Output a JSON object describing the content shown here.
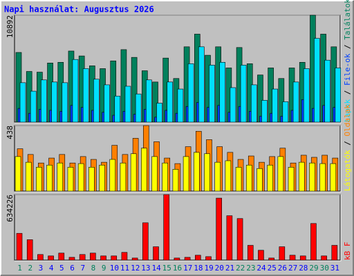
{
  "chart_data": [
    {
      "type": "bar",
      "title": "Napi használat: Augusztus 2026",
      "ylim": [
        0,
        10892
      ],
      "yticks": [
        10892
      ],
      "series": [
        {
          "name": "Találatok",
          "color": "#00805c",
          "values": [
            7098,
            5162,
            5090,
            6023,
            6094,
            7241,
            6740,
            5736,
            5449,
            6238,
            7385,
            6596,
            5234,
            4087,
            6525,
            4445,
            7672,
            8963,
            6812,
            7672,
            5521,
            7600,
            5951,
            4804,
            5521,
            4445,
            5521,
            6094,
            10892,
            8963,
            7672
          ]
        },
        {
          "name": "File-ok",
          "color": "#0040ff",
          "values": [
            1400,
            900,
            1300,
            1200,
            1100,
            1700,
            1500,
            1200,
            1000,
            700,
            1100,
            800,
            1300,
            500,
            1200,
            900,
            1600,
            2000,
            1500,
            1700,
            1000,
            1600,
            1100,
            600,
            900,
            600,
            1200,
            2300,
            1400,
            1700,
            1500
          ]
        },
        {
          "name": "Lapok",
          "color": "#00e0ff",
          "values": [
            4015,
            3155,
            4302,
            4087,
            4015,
            6381,
            5449,
            4374,
            3800,
            2653,
            3656,
            2868,
            4302,
            1936,
            4087,
            3370,
            5951,
            7672,
            5808,
            6094,
            3513,
            5808,
            3800,
            2222,
            3370,
            2079,
            4087,
            5449,
            8533,
            6310,
            5521
          ]
        }
      ]
    },
    {
      "type": "bar",
      "ylim": [
        0,
        438
      ],
      "yticks": [
        438
      ],
      "series": [
        {
          "name": "Oldalak",
          "color": "#ff8000",
          "values": [
            283,
            245,
            188,
            221,
            245,
            188,
            231,
            212,
            193,
            306,
            245,
            353,
            438,
            330,
            221,
            184,
            297,
            400,
            344,
            297,
            259,
            212,
            235,
            193,
            231,
            287,
            188,
            240,
            226,
            240,
            221
          ]
        },
        {
          "name": "Látogatók",
          "color": "#ffff00",
          "values": [
            231,
            193,
            160,
            174,
            188,
            160,
            184,
            160,
            174,
            212,
            188,
            250,
            287,
            231,
            188,
            146,
            231,
            259,
            250,
            193,
            203,
            160,
            174,
            151,
            174,
            231,
            160,
            193,
            188,
            184,
            184
          ]
        }
      ]
    },
    {
      "type": "bar",
      "ylim": [
        0,
        634226
      ],
      "yticks": [
        634226
      ],
      "categories": [
        "1",
        "2",
        "3",
        "4",
        "5",
        "6",
        "7",
        "8",
        "9",
        "10",
        "11",
        "12",
        "13",
        "14",
        "15",
        "16",
        "17",
        "18",
        "19",
        "20",
        "21",
        "22",
        "23",
        "24",
        "25",
        "26",
        "27",
        "28",
        "29",
        "30",
        "31"
      ],
      "category_colors": [
        "#00805c",
        "#00805c",
        "#0000ff",
        "#0000ff",
        "#0000ff",
        "#0000ff",
        "#0000ff",
        "#00805c",
        "#00805c",
        "#0000ff",
        "#0000ff",
        "#0000ff",
        "#0000ff",
        "#0000ff",
        "#00805c",
        "#00805c",
        "#0000ff",
        "#0000ff",
        "#0000ff",
        "#0000ff",
        "#0000ff",
        "#00805c",
        "#00805c",
        "#0000ff",
        "#0000ff",
        "#0000ff",
        "#0000ff",
        "#0000ff",
        "#00805c",
        "#00805c",
        "#0000ff"
      ],
      "series": [
        {
          "name": "kB F",
          "color": "#ff0000",
          "values": [
            259160,
            197780,
            54560,
            40920,
            68200,
            27280,
            54560,
            68200,
            40920,
            40920,
            75020,
            20460,
            361460,
            129580,
            634226,
            20460,
            27280,
            47740,
            34100,
            600160,
            429660,
            402380,
            143220,
            95480,
            20460,
            129580,
            47740,
            40920,
            354640,
            40920,
            143220
          ]
        }
      ]
    }
  ]
}
